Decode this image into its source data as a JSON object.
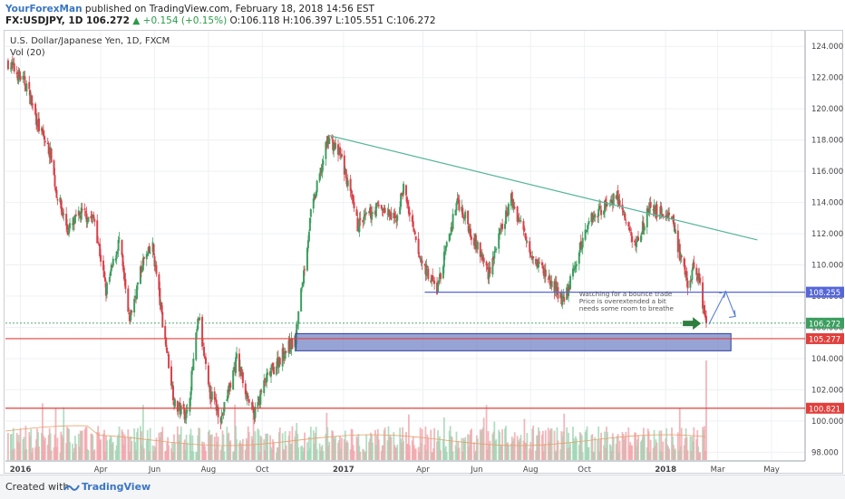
{
  "header": {
    "author": "YourForexMan",
    "published": "published on TradingView.com, February 18, 2018 14:56 EST",
    "symbol_line": "FX:USDJPY, 1D 106.272",
    "change": "▲ +0.154 (+0.15%)",
    "ohlc": "O:106.118 H:106.397 L:105.551 C:106.272"
  },
  "footer": {
    "created": "Created with",
    "brand": "TradingView"
  },
  "colors": {
    "up": "#3c9e5f",
    "down": "#d9414a",
    "trend": "#55b49a",
    "hline_blue": "#5566d8",
    "hline_red": "#e0403c",
    "zone": "#7484c6"
  },
  "chart_data": {
    "type": "candlestick",
    "title": "U.S. Dollar/Japanese Yen, 1D, FXCM",
    "indicator": "Vol (20)",
    "ylim": [
      97.5,
      125
    ],
    "y_ticks": [
      "124.000",
      "122.000",
      "120.000",
      "118.000",
      "116.000",
      "114.000",
      "112.000",
      "110.000",
      "108.000",
      "106.000",
      "104.000",
      "102.000",
      "100.000",
      "98.000"
    ],
    "x_ticks": [
      {
        "label": "2016",
        "date": "2016-01-01",
        "bold": true
      },
      {
        "label": "Apr",
        "date": "2016-04-01"
      },
      {
        "label": "Jun",
        "date": "2016-06-01"
      },
      {
        "label": "Aug",
        "date": "2016-08-01"
      },
      {
        "label": "Oct",
        "date": "2016-10-01"
      },
      {
        "label": "2017",
        "date": "2017-01-01",
        "bold": true
      },
      {
        "label": "Apr",
        "date": "2017-04-01"
      },
      {
        "label": "Jun",
        "date": "2017-06-01"
      },
      {
        "label": "Aug",
        "date": "2017-08-01"
      },
      {
        "label": "Oct",
        "date": "2017-10-01"
      },
      {
        "label": "2018",
        "date": "2018-01-01",
        "bold": true
      },
      {
        "label": "Mar",
        "date": "2018-03-01"
      },
      {
        "label": "May",
        "date": "2018-05-01"
      }
    ],
    "price_path": [
      [
        "2015-12-18",
        123.0
      ],
      [
        "2016-01-08",
        121.5
      ],
      [
        "2016-01-22",
        118.8
      ],
      [
        "2016-02-05",
        117.0
      ],
      [
        "2016-02-10",
        114.8
      ],
      [
        "2016-02-24",
        112.2
      ],
      [
        "2016-03-10",
        113.3
      ],
      [
        "2016-03-25",
        112.9
      ],
      [
        "2016-04-07",
        108.3
      ],
      [
        "2016-04-22",
        111.6
      ],
      [
        "2016-05-03",
        106.4
      ],
      [
        "2016-05-19",
        110.2
      ],
      [
        "2016-05-30",
        111.1
      ],
      [
        "2016-06-09",
        106.8
      ],
      [
        "2016-06-24",
        101.0
      ],
      [
        "2016-07-08",
        100.4
      ],
      [
        "2016-07-21",
        106.7
      ],
      [
        "2016-08-01",
        102.0
      ],
      [
        "2016-08-16",
        100.2
      ],
      [
        "2016-09-02",
        104.0
      ],
      [
        "2016-09-21",
        100.3
      ],
      [
        "2016-10-04",
        102.5
      ],
      [
        "2016-10-25",
        104.4
      ],
      [
        "2016-11-08",
        105.2
      ],
      [
        "2016-11-10",
        106.4
      ],
      [
        "2016-11-25",
        113.2
      ],
      [
        "2016-12-15",
        118.2
      ],
      [
        "2016-12-30",
        116.8
      ],
      [
        "2017-01-17",
        112.5
      ],
      [
        "2017-02-10",
        113.8
      ],
      [
        "2017-03-01",
        112.8
      ],
      [
        "2017-03-10",
        115.0
      ],
      [
        "2017-03-27",
        110.6
      ],
      [
        "2017-04-17",
        108.4
      ],
      [
        "2017-05-10",
        114.2
      ],
      [
        "2017-06-14",
        109.5
      ],
      [
        "2017-07-10",
        114.2
      ],
      [
        "2017-08-04",
        110.6
      ],
      [
        "2017-09-08",
        107.6
      ],
      [
        "2017-10-06",
        112.9
      ],
      [
        "2017-11-06",
        114.5
      ],
      [
        "2017-11-27",
        111.2
      ],
      [
        "2017-12-13",
        113.6
      ],
      [
        "2018-01-08",
        113.2
      ],
      [
        "2018-01-17",
        110.6
      ],
      [
        "2018-01-26",
        108.6
      ],
      [
        "2018-02-01",
        109.8
      ],
      [
        "2018-02-07",
        109.2
      ],
      [
        "2018-02-16",
        106.272
      ]
    ],
    "last_close": 106.272,
    "levels": [
      {
        "label": "108.255",
        "value": 108.255,
        "color": "#5566d8"
      },
      {
        "label": "106.272",
        "value": 106.272,
        "color": "#3c9e5f"
      },
      {
        "label": "105.277",
        "value": 105.277,
        "color": "#e0403c"
      },
      {
        "label": "100.821",
        "value": 100.821,
        "color": "#e0403c"
      }
    ],
    "trendline": [
      [
        "2016-12-15",
        118.3
      ],
      [
        "2018-04-15",
        111.6
      ]
    ],
    "support_zone": {
      "x0": "2016-11-08",
      "x1": "2018-03-16",
      "y0": 104.5,
      "y1": 105.6
    },
    "projection": [
      [
        "2018-02-19",
        106.2
      ],
      [
        "2018-03-10",
        108.3
      ],
      [
        "2018-03-21",
        106.7
      ]
    ],
    "annotation": [
      "Watching for a bounce trade",
      "Price is overextended a bit",
      "needs some room to breathe"
    ]
  }
}
